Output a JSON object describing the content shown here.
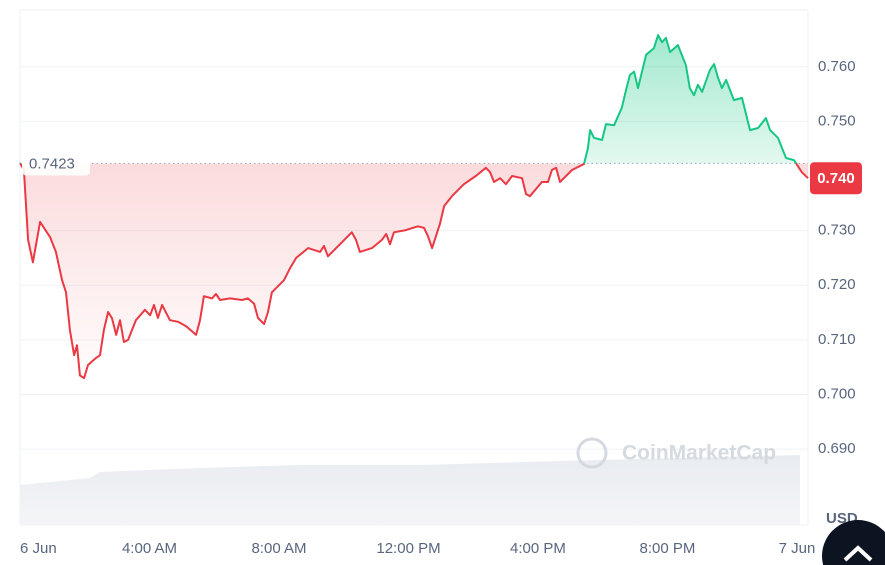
{
  "chart_data": {
    "type": "line",
    "x": [
      0,
      0.12,
      0.25,
      0.4,
      0.62,
      0.93,
      1.11,
      1.3,
      1.42,
      1.54,
      1.67,
      1.76,
      1.85,
      1.98,
      2.1,
      2.35,
      2.47,
      2.59,
      2.72,
      2.84,
      2.97,
      3.09,
      3.21,
      3.34,
      3.58,
      3.86,
      4.02,
      4.14,
      4.26,
      4.39,
      4.63,
      4.88,
      5.13,
      5.44,
      5.56,
      5.68,
      5.93,
      6.05,
      6.18,
      6.49,
      6.86,
      7.04,
      7.23,
      7.35,
      7.54,
      7.66,
      7.78,
      8.15,
      8.34,
      8.53,
      8.9,
      9.27,
      9.39,
      9.51,
      9.88,
      10.25,
      10.38,
      10.5,
      10.87,
      11.18,
      11.31,
      11.43,
      11.55,
      11.92,
      12.29,
      12.48,
      12.6,
      12.73,
      12.85,
      12.97,
      13.1,
      13.34,
      13.71,
      14.08,
      14.39,
      14.52,
      14.64,
      14.83,
      15.01,
      15.2,
      15.51,
      15.63,
      15.75,
      16.12,
      16.31,
      16.43,
      16.56,
      16.68,
      17.05,
      17.42,
      17.54,
      17.61,
      17.73,
      17.98,
      18.1,
      18.35,
      18.59,
      18.72,
      18.84,
      18.97,
      19.09,
      19.34,
      19.58,
      19.71,
      19.83,
      19.95,
      20.08,
      20.32,
      20.57,
      20.69,
      20.82,
      20.94,
      21.07,
      21.31,
      21.44,
      21.56,
      21.68,
      21.81,
      22.05,
      22.3,
      22.55,
      22.8,
      23.04,
      23.17,
      23.41,
      23.66,
      23.91,
      24.15,
      24.34
    ],
    "values": [
      0.7424,
      0.7411,
      0.7283,
      0.7242,
      0.7316,
      0.7288,
      0.7261,
      0.7209,
      0.7187,
      0.7118,
      0.7072,
      0.709,
      0.7035,
      0.703,
      0.7054,
      0.7067,
      0.7072,
      0.7118,
      0.7151,
      0.714,
      0.7109,
      0.7136,
      0.7096,
      0.71,
      0.7136,
      0.7155,
      0.7145,
      0.7164,
      0.714,
      0.7164,
      0.7136,
      0.7133,
      0.7125,
      0.7109,
      0.7136,
      0.718,
      0.7176,
      0.7184,
      0.7173,
      0.7176,
      0.7173,
      0.7176,
      0.7166,
      0.714,
      0.7129,
      0.7151,
      0.7187,
      0.7209,
      0.7231,
      0.725,
      0.7268,
      0.7261,
      0.7272,
      0.7253,
      0.7275,
      0.7297,
      0.7283,
      0.7261,
      0.7268,
      0.7283,
      0.7294,
      0.7275,
      0.7297,
      0.7301,
      0.7308,
      0.7305,
      0.729,
      0.7268,
      0.729,
      0.7312,
      0.7345,
      0.7363,
      0.7385,
      0.74,
      0.7415,
      0.7407,
      0.7389,
      0.7396,
      0.7385,
      0.74,
      0.7396,
      0.7367,
      0.7363,
      0.7389,
      0.7389,
      0.7411,
      0.7415,
      0.7389,
      0.7411,
      0.7422,
      0.7451,
      0.7484,
      0.747,
      0.7466,
      0.7495,
      0.7493,
      0.7525,
      0.7558,
      0.7585,
      0.7591,
      0.7561,
      0.7622,
      0.7634,
      0.7658,
      0.7645,
      0.7653,
      0.7627,
      0.764,
      0.7603,
      0.7561,
      0.7548,
      0.7567,
      0.7554,
      0.7594,
      0.7605,
      0.758,
      0.7561,
      0.7576,
      0.7539,
      0.7543,
      0.7484,
      0.7488,
      0.7506,
      0.7484,
      0.747,
      0.7433,
      0.7429,
      0.7407,
      0.7396
    ],
    "up_color": "#16c784",
    "down_color": "#ea3943",
    "baseline": 0.7423,
    "current_price": {
      "value": 0.7396,
      "label": "0.740"
    },
    "xlim": [
      0,
      24.34
    ],
    "xticks": [
      {
        "value": 0,
        "label": "6 Jun"
      },
      {
        "value": 4,
        "label": "4:00 AM"
      },
      {
        "value": 8,
        "label": "8:00 AM"
      },
      {
        "value": 12,
        "label": "12:00 PM"
      },
      {
        "value": 16,
        "label": "4:00 PM"
      },
      {
        "value": 20,
        "label": "8:00 PM"
      },
      {
        "value": 24,
        "label": "7 Jun"
      }
    ],
    "ylim": [
      0.6761,
      0.7704
    ],
    "yticks": [
      {
        "value": 0.69,
        "label": "0.690"
      },
      {
        "value": 0.7,
        "label": "0.700"
      },
      {
        "value": 0.71,
        "label": "0.710"
      },
      {
        "value": 0.72,
        "label": "0.720"
      },
      {
        "value": 0.73,
        "label": "0.730"
      },
      {
        "value": 0.75,
        "label": "0.750"
      },
      {
        "value": 0.76,
        "label": "0.760"
      }
    ],
    "grid": true,
    "currency": "USD",
    "watermark": "CoinMarketCap"
  }
}
